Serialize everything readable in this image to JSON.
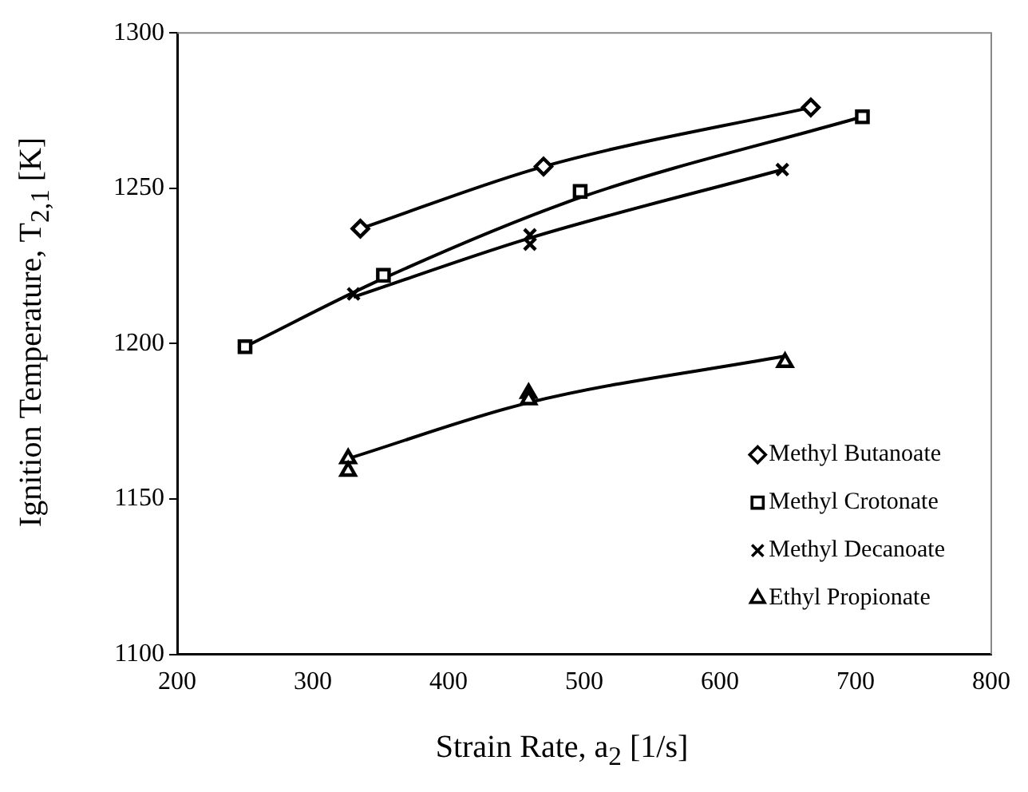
{
  "chart_data": {
    "type": "scatter",
    "xlabel": "Strain Rate, a$_{2}$ [1/s]",
    "ylabel": "Ignition Temperature, T$_{2,1}$ [K]",
    "xlim": [
      200,
      800
    ],
    "xticks": [
      200,
      300,
      400,
      500,
      600,
      700,
      800
    ],
    "ylim": [
      1100,
      1300
    ],
    "yticks": [
      1100,
      1150,
      1200,
      1250,
      1300
    ],
    "grid": false,
    "legend": "bottom right",
    "series": [
      {
        "name": "Methyl Butanoate",
        "color": "#000000",
        "marker": "diamond",
        "x": [
          335,
          470,
          667
        ],
        "values": [
          1237,
          1257,
          1276
        ]
      },
      {
        "name": "Methyl Crotonate",
        "color": "#000000",
        "marker": "square",
        "x": [
          250,
          352,
          497,
          705
        ],
        "values": [
          1199,
          1222,
          1249,
          1273
        ]
      },
      {
        "name": "Methyl Decanoate",
        "color": "#000000",
        "marker": "cross",
        "x": [
          330,
          460,
          460,
          646
        ],
        "values": [
          1216,
          1232,
          1235,
          1256
        ]
      },
      {
        "name": "Ethyl Propionate",
        "color": "#000000",
        "marker": "triangle",
        "x": [
          326,
          326,
          459,
          459,
          648
        ],
        "values": [
          1163,
          1159,
          1184,
          1182,
          1194
        ]
      },
      {
        "type": "line",
        "color": "#000000",
        "marker": "none",
        "x": [
          335,
          470,
          667
        ],
        "values": [
          1237,
          1257,
          1276
        ]
      },
      {
        "type": "line",
        "color": "#000000",
        "marker": "none",
        "x": [
          250,
          352,
          497,
          705
        ],
        "values": [
          1199,
          1221,
          1247,
          1273
        ]
      },
      {
        "type": "line",
        "color": "#000000",
        "marker": "none",
        "x": [
          330,
          460,
          646
        ],
        "values": [
          1215,
          1234,
          1256
        ]
      },
      {
        "type": "line",
        "color": "#000000",
        "marker": "none",
        "x": [
          326,
          459,
          648
        ],
        "values": [
          1163,
          1181,
          1196
        ]
      }
    ]
  }
}
